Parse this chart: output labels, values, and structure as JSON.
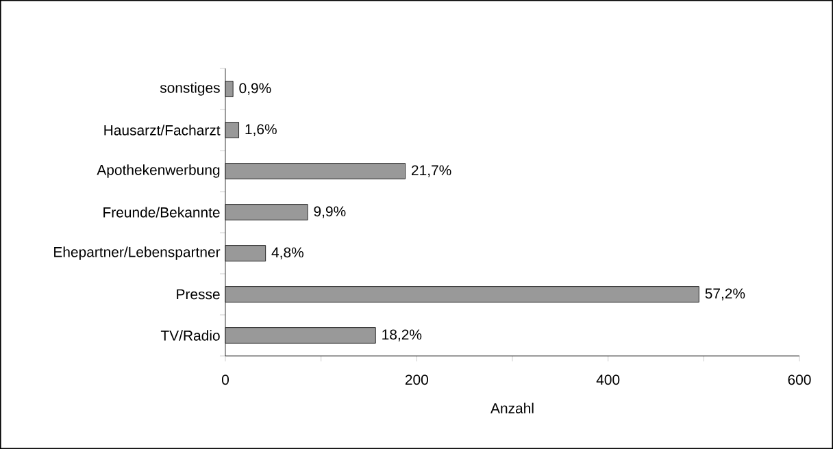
{
  "chart_data": {
    "type": "bar",
    "orientation": "horizontal",
    "xlabel": "Anzahl",
    "categories": [
      "sonstiges",
      "Hausarzt/Facharzt",
      "Apothekenwerbung",
      "Freunde/Bekannte",
      "Ehepartner/Lebenspartner",
      "Presse",
      "TV/Radio"
    ],
    "values": [
      8,
      14,
      188,
      86,
      42,
      495,
      157
    ],
    "annotations": [
      {
        "text": "0,9%",
        "x": 8,
        "y": "sonstiges"
      },
      {
        "text": "1,6%",
        "x": 14,
        "y": "Hausarzt/Facharzt"
      },
      {
        "text": "21,7%",
        "x": 188,
        "y": "Apothekenwerbung"
      },
      {
        "text": "9,9%",
        "x": 86,
        "y": "Freunde/Bekannte"
      },
      {
        "text": "4,8%",
        "x": 42,
        "y": "Ehepartner/Lebenspartner"
      },
      {
        "text": "57,2%",
        "x": 495,
        "y": "Presse"
      },
      {
        "text": "18,2%",
        "x": 157,
        "y": "TV/Radio"
      }
    ],
    "color": "#999999",
    "xlim": [
      0,
      600
    ],
    "xticks": [
      0,
      {
        "value": 100,
        "label": null
      },
      200,
      {
        "value": 300,
        "label": null
      },
      400,
      {
        "value": 500,
        "label": null
      },
      600
    ],
    "grid": false
  }
}
